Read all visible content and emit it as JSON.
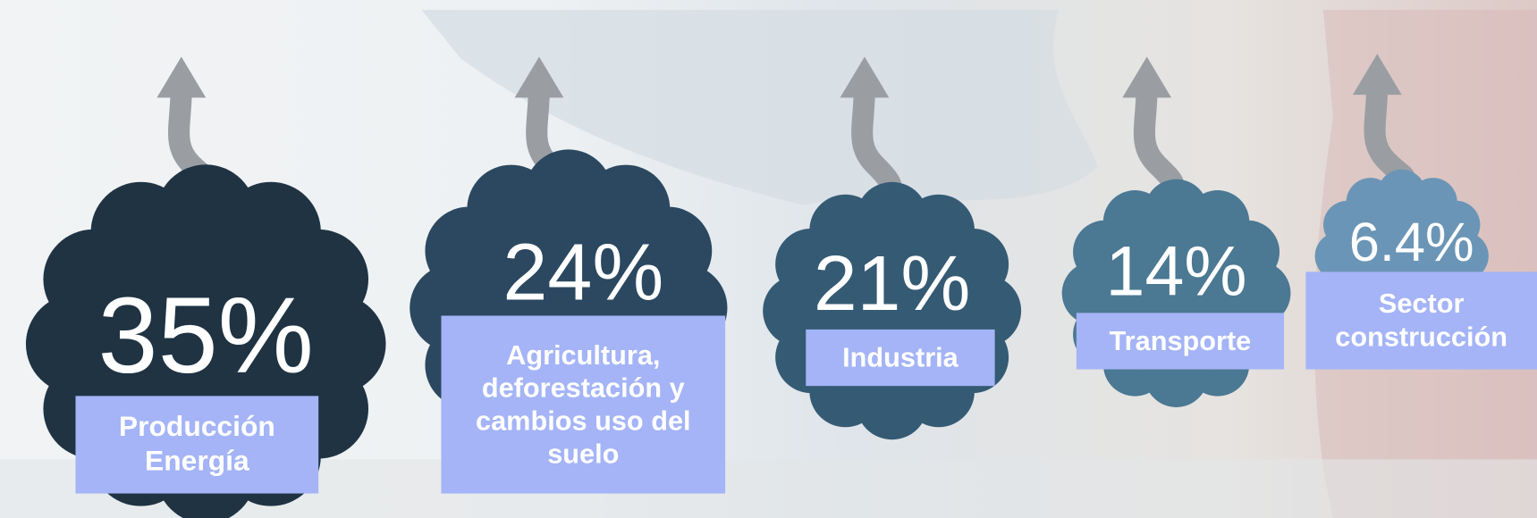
{
  "items": [
    {
      "percent": "35%",
      "label": "Producción Energía"
    },
    {
      "percent": "24%",
      "label": "Agricultura, deforestación y cambios uso del suelo"
    },
    {
      "percent": "21%",
      "label": "Industria"
    },
    {
      "percent": "14%",
      "label": "Transporte"
    },
    {
      "percent": "6.4%",
      "label": "Sector construcción"
    }
  ]
}
